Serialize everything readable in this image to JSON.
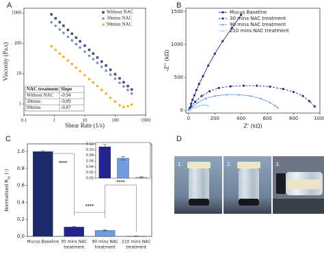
{
  "panels": [
    "A",
    "B",
    "C",
    "D"
  ],
  "photo_labels": [
    "1.",
    "2.",
    "3."
  ],
  "chart_data": [
    {
      "type": "scatter",
      "log_x": true,
      "log_y": true,
      "xlabel": "Shear Rate (1/s)",
      "ylabel": "Viscosity (Pa.s)",
      "xlim": [
        0.1,
        1000
      ],
      "ylim": [
        0.43,
        1440
      ],
      "xticks": [
        0.1,
        1,
        10,
        100,
        1000
      ],
      "yticks": [
        1,
        10,
        100,
        1000
      ],
      "legend": "upper right",
      "x": [
        0.8,
        1.1,
        1.5,
        2,
        2.8,
        3.8,
        5.2,
        7,
        10,
        14,
        19,
        26,
        36,
        50,
        70,
        100,
        140,
        190,
        260,
        350
      ],
      "series": [
        {
          "name": "Without NAC",
          "color": "#4b4f72",
          "marker": "square",
          "values": [
            900,
            668,
            499,
            381,
            277,
            208,
            155,
            117,
            84,
            61,
            46,
            34,
            25,
            18.5,
            13.4,
            9.6,
            7.0,
            5.2,
            3.9,
            3.0
          ]
        },
        {
          "name": "30mins NAC",
          "color": "#6f8fd0",
          "marker": "circle",
          "values": [
            500,
            377,
            286,
            221,
            164,
            125,
            94,
            73,
            53,
            39,
            30,
            22.6,
            16.9,
            12.6,
            9.3,
            6.8,
            5.0,
            3.8,
            2.9,
            2.2
          ]
        },
        {
          "name": "90mins NAC",
          "color": "#f2b01e",
          "marker": "circle",
          "values": [
            80,
            61,
            46,
            36,
            27,
            21,
            15.7,
            12.1,
            8.9,
            6.6,
            5.1,
            3.9,
            2.9,
            2.2,
            1.6,
            1.2,
            0.9,
            0.8,
            0.85,
            0.95
          ]
        }
      ],
      "table": {
        "header": [
          "NAC treatment",
          "Slope"
        ],
        "rows": [
          [
            "Without NAC",
            "-0.94"
          ],
          [
            "30mins",
            "-0.89"
          ],
          [
            "90mins",
            "-0.87"
          ]
        ]
      }
    },
    {
      "type": "line",
      "xlabel": "Z' (kΩ)",
      "ylabel": "-Z'' (kΩ)",
      "xlim": [
        -20,
        1000
      ],
      "ylim": [
        -40,
        1550
      ],
      "xticks": [
        0,
        200,
        400,
        600,
        800,
        1000
      ],
      "yticks": [
        0,
        500,
        1000,
        1500
      ],
      "legend": "upper right",
      "series": [
        {
          "name": "Mucus Baseline",
          "color": "#1f2a80",
          "marker": "circle",
          "linestyle": "solid",
          "x": [
            5,
            10,
            20,
            30,
            45,
            60,
            80,
            110,
            150,
            200,
            260,
            330,
            400
          ],
          "values": [
            10,
            40,
            100,
            160,
            230,
            310,
            400,
            520,
            680,
            860,
            1050,
            1250,
            1450
          ]
        },
        {
          "name": "30 mins NAC treatment",
          "color": "#1f2a80",
          "marker": "circle",
          "linestyle": "dashed",
          "x": [
            5,
            20,
            50,
            100,
            160,
            230,
            320,
            420,
            520,
            620,
            720,
            800,
            870,
            920,
            960
          ],
          "values": [
            5,
            60,
            130,
            220,
            290,
            340,
            365,
            375,
            375,
            360,
            325,
            280,
            220,
            140,
            60
          ]
        },
        {
          "name": "90 mins NAC treatment",
          "color": "#6f9be0",
          "marker": "triangle",
          "linestyle": "solid",
          "x": [
            5,
            30,
            70,
            130,
            200,
            290,
            380,
            470,
            550,
            620,
            660,
            680
          ],
          "values": [
            5,
            60,
            120,
            180,
            220,
            240,
            240,
            220,
            180,
            120,
            70,
            40
          ]
        },
        {
          "name": "210 mins NAC treatment",
          "color": "#9fd4f0",
          "marker": "triangle",
          "linestyle": "solid",
          "x": [
            5,
            20,
            40,
            60,
            80,
            100,
            120,
            140,
            150
          ],
          "values": [
            3,
            20,
            40,
            55,
            70,
            80,
            85,
            80,
            70
          ]
        }
      ]
    },
    {
      "type": "bar",
      "ylabel": [
        "Normalised R",
        "ct",
        " (-)"
      ],
      "categories": [
        [
          "Mucus Baseline"
        ],
        [
          "30 mins NAC",
          "treatment"
        ],
        [
          "90 mins NAC",
          "treatment"
        ],
        [
          "210 mins NAC",
          "treatment"
        ]
      ],
      "values": [
        1.0,
        0.11,
        0.07,
        0.003
      ],
      "errors": [
        0.01,
        0.008,
        0.006,
        0.002
      ],
      "colors": [
        "#1b2a6b",
        "#23238c",
        "#6f9be0",
        "#b9dcf2"
      ],
      "ylim": [
        0,
        1.09
      ],
      "yticks": [
        {
          "value": 0,
          "label": "0.0"
        },
        0.2,
        0.4,
        0.6,
        0.8,
        {
          "value": 1,
          "label": "1.0"
        }
      ],
      "annotations": [
        "****",
        "****",
        "****"
      ],
      "inset_ylim": [
        0,
        0.125
      ],
      "inset_yticks": [
        {
          "value": 0,
          "label": "0.00"
        },
        {
          "value": 0.02,
          "label": "0.02"
        },
        {
          "value": 0.04,
          "label": "0.04"
        },
        {
          "value": 0.06,
          "label": "0.06"
        },
        {
          "value": 0.08,
          "label": "0.08"
        },
        {
          "value": 0.1,
          "label": "0.10"
        },
        {
          "value": 0.12,
          "label": "0.12"
        }
      ]
    }
  ]
}
